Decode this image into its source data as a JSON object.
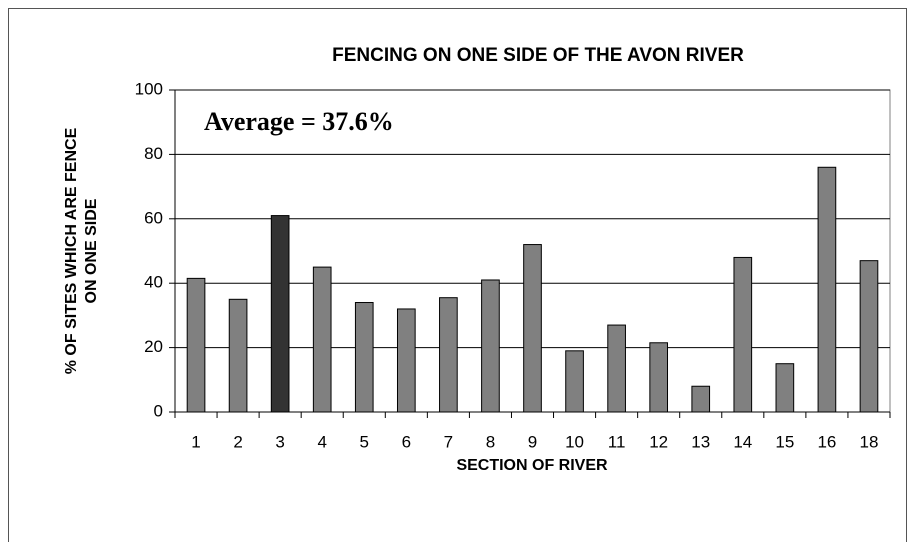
{
  "chart_data": {
    "type": "bar",
    "title": "FENCING ON ONE SIDE OF THE AVON RIVER",
    "xlabel": "SECTION OF RIVER",
    "ylabel": [
      "% OF SITES WHICH ARE FENCE",
      "ON ONE SIDE"
    ],
    "annotation": "Average = 37.6%",
    "categories": [
      "1",
      "2",
      "3",
      "4",
      "5",
      "6",
      "7",
      "8",
      "9",
      "10",
      "11",
      "12",
      "13",
      "14",
      "15",
      "16",
      "18"
    ],
    "values": [
      41.5,
      35,
      61,
      45,
      34,
      32,
      35.5,
      41,
      52,
      19,
      27,
      21.5,
      8,
      48,
      15,
      76,
      47
    ],
    "colors": [
      "#808080",
      "#808080",
      "#333333",
      "#808080",
      "#808080",
      "#808080",
      "#808080",
      "#808080",
      "#808080",
      "#808080",
      "#808080",
      "#808080",
      "#808080",
      "#808080",
      "#808080",
      "#808080",
      "#808080"
    ],
    "ylim": [
      0,
      100
    ],
    "yticks": [
      0,
      20,
      40,
      60,
      80,
      100
    ],
    "grid": true
  }
}
